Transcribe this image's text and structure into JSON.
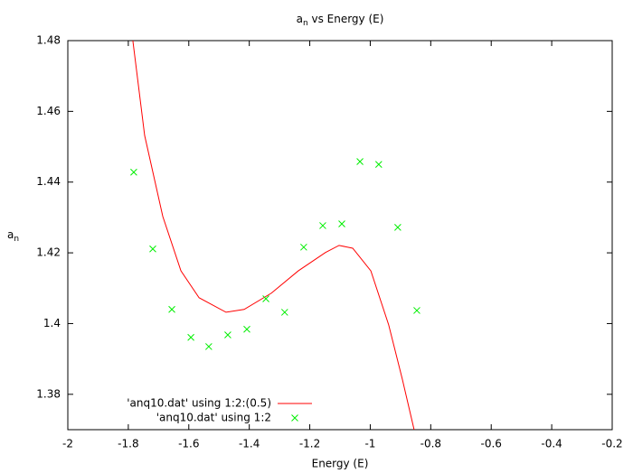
{
  "chart_data": {
    "type": "line",
    "title": [
      "a",
      "n",
      " vs Energy (E)"
    ],
    "xlabel": "Energy (E)",
    "ylabel": [
      "a",
      "n"
    ],
    "xlim": [
      -2,
      -0.2
    ],
    "xticks": [
      -2,
      -1.8,
      -1.6,
      -1.4,
      -1.2,
      -1,
      -0.8,
      -0.6,
      -0.4,
      -0.2
    ],
    "ylim": [
      1.37,
      1.48
    ],
    "yticks": [
      1.38,
      1.4,
      1.42,
      1.44,
      1.46,
      1.48
    ],
    "grid": false,
    "legend": "bottom-left",
    "series": [
      {
        "name": "'anq10.dat' using 1:2:(0.5)",
        "type": "line",
        "color": "#ff0000",
        "x": [
          -1.785,
          -1.746,
          -1.686,
          -1.626,
          -1.566,
          -1.477,
          -1.417,
          -1.327,
          -1.238,
          -1.148,
          -1.103,
          -1.058,
          -0.998,
          -0.939,
          -0.894,
          -0.855
        ],
        "values": [
          1.48,
          1.4532,
          1.4303,
          1.4149,
          1.4073,
          1.4032,
          1.404,
          1.4086,
          1.4149,
          1.4201,
          1.4221,
          1.4213,
          1.4149,
          1.3996,
          1.3843,
          1.37
        ]
      },
      {
        "name": "'anq10.dat' using 1:2",
        "type": "scatter",
        "color": "#00ee00",
        "x": [
          -1.782,
          -1.719,
          -1.656,
          -1.593,
          -1.534,
          -1.471,
          -1.408,
          -1.345,
          -1.283,
          -1.22,
          -1.157,
          -1.094,
          -1.034,
          -0.972,
          -0.909,
          -0.846
        ],
        "values": [
          1.4428,
          1.4211,
          1.404,
          1.3961,
          1.3935,
          1.3968,
          1.3984,
          1.407,
          1.4032,
          1.4216,
          1.4277,
          1.4282,
          1.4458,
          1.445,
          1.4272,
          1.4037
        ]
      }
    ]
  }
}
